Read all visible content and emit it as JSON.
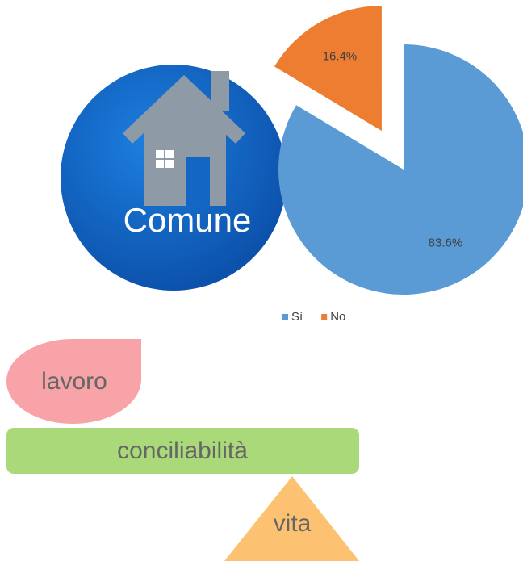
{
  "chart_data": {
    "type": "pie",
    "categories": [
      "Sì",
      "No"
    ],
    "values": [
      83.6,
      16.4
    ],
    "value_labels": [
      "83.6%",
      "16.4%"
    ],
    "colors": [
      "#5b9bd5",
      "#ed7d31"
    ],
    "exploded": [
      false,
      true
    ],
    "legend": "bottom"
  },
  "icon": {
    "label": "Comune"
  },
  "balance": {
    "top": "lavoro",
    "bar": "conciliabilità",
    "bottom": "vita"
  }
}
